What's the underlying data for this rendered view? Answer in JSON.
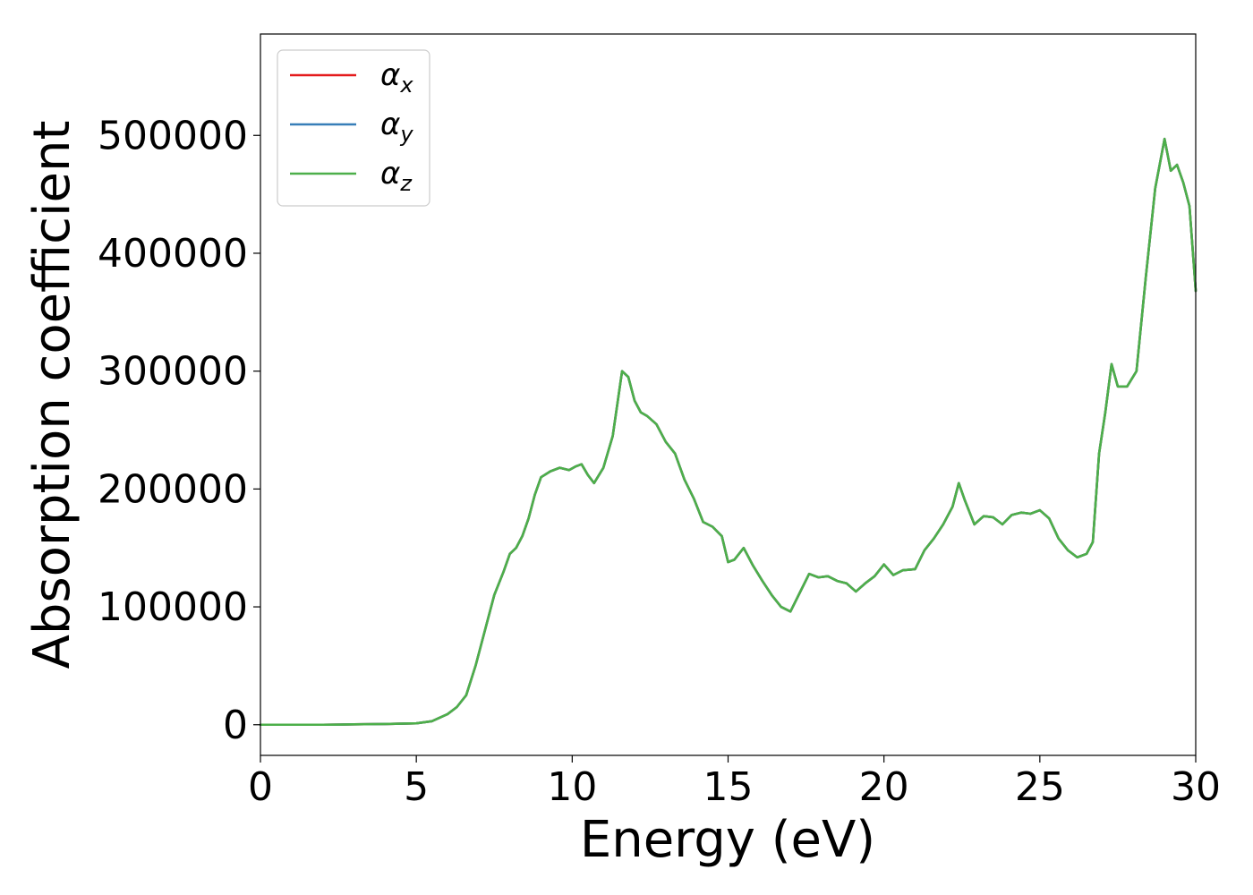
{
  "chart_data": {
    "type": "line",
    "xlabel": "Energy (eV)",
    "ylabel": "Absorption coefficient",
    "xlim": [
      0,
      30
    ],
    "ylim": [
      -26000,
      586000
    ],
    "x_ticks": [
      0,
      5,
      10,
      15,
      20,
      25,
      30
    ],
    "y_ticks": [
      0,
      100000,
      200000,
      300000,
      400000,
      500000
    ],
    "grid": false,
    "legend_position": "top-left",
    "x": [
      0,
      1,
      2,
      3,
      4,
      5,
      5.5,
      6,
      6.3,
      6.6,
      6.9,
      7.2,
      7.5,
      7.8,
      8.0,
      8.2,
      8.4,
      8.6,
      8.8,
      9.0,
      9.3,
      9.6,
      9.9,
      10.1,
      10.3,
      10.5,
      10.7,
      11.0,
      11.3,
      11.6,
      11.8,
      12.0,
      12.2,
      12.4,
      12.7,
      13.0,
      13.3,
      13.6,
      13.9,
      14.2,
      14.5,
      14.8,
      15.0,
      15.2,
      15.5,
      15.8,
      16.1,
      16.4,
      16.7,
      17.0,
      17.3,
      17.6,
      17.9,
      18.2,
      18.5,
      18.8,
      19.1,
      19.4,
      19.7,
      20.0,
      20.3,
      20.6,
      21.0,
      21.3,
      21.6,
      21.9,
      22.2,
      22.4,
      22.6,
      22.9,
      23.2,
      23.5,
      23.8,
      24.1,
      24.4,
      24.7,
      25.0,
      25.3,
      25.6,
      25.9,
      26.2,
      26.5,
      26.7,
      26.9,
      27.1,
      27.3,
      27.5,
      27.8,
      28.1,
      28.4,
      28.7,
      29.0,
      29.2,
      29.4,
      29.6,
      29.8,
      30.0
    ],
    "series": [
      {
        "name": "α_x",
        "color": "#e41a1c",
        "y": [
          0,
          0,
          0,
          300,
          600,
          1200,
          3000,
          9000,
          15000,
          25000,
          50000,
          80000,
          110000,
          130000,
          145000,
          150000,
          160000,
          175000,
          195000,
          210000,
          215000,
          218000,
          216000,
          219000,
          221000,
          212000,
          205000,
          218000,
          245000,
          300000,
          295000,
          275000,
          265000,
          262000,
          255000,
          240000,
          230000,
          208000,
          192000,
          172000,
          168000,
          160000,
          138000,
          140000,
          150000,
          135000,
          122000,
          110000,
          100000,
          96000,
          112000,
          128000,
          125000,
          126000,
          122000,
          120000,
          113000,
          120000,
          126000,
          136000,
          127000,
          131000,
          132000,
          148000,
          158000,
          170000,
          185000,
          205000,
          190000,
          170000,
          177000,
          176000,
          170000,
          178000,
          180000,
          179000,
          182000,
          175000,
          158000,
          148000,
          142000,
          145000,
          155000,
          230000,
          265000,
          306000,
          287000,
          287000,
          300000,
          380000,
          455000,
          497000,
          470000,
          475000,
          460000,
          440000,
          368000
        ]
      },
      {
        "name": "α_y",
        "color": "#377eb8",
        "y": [
          0,
          0,
          0,
          300,
          600,
          1200,
          3000,
          9000,
          15000,
          25000,
          50000,
          80000,
          110000,
          130000,
          145000,
          150000,
          160000,
          175000,
          195000,
          210000,
          215000,
          218000,
          216000,
          219000,
          221000,
          212000,
          205000,
          218000,
          245000,
          300000,
          295000,
          275000,
          265000,
          262000,
          255000,
          240000,
          230000,
          208000,
          192000,
          172000,
          168000,
          160000,
          138000,
          140000,
          150000,
          135000,
          122000,
          110000,
          100000,
          96000,
          112000,
          128000,
          125000,
          126000,
          122000,
          120000,
          113000,
          120000,
          126000,
          136000,
          127000,
          131000,
          132000,
          148000,
          158000,
          170000,
          185000,
          205000,
          190000,
          170000,
          177000,
          176000,
          170000,
          178000,
          180000,
          179000,
          182000,
          175000,
          158000,
          148000,
          142000,
          145000,
          155000,
          230000,
          265000,
          306000,
          287000,
          287000,
          300000,
          380000,
          455000,
          497000,
          470000,
          475000,
          460000,
          440000,
          368000
        ]
      },
      {
        "name": "α_z",
        "color": "#4daf4a",
        "y": [
          0,
          0,
          0,
          300,
          600,
          1200,
          3000,
          9000,
          15000,
          25000,
          50000,
          80000,
          110000,
          130000,
          145000,
          150000,
          160000,
          175000,
          195000,
          210000,
          215000,
          218000,
          216000,
          219000,
          221000,
          212000,
          205000,
          218000,
          245000,
          300000,
          295000,
          275000,
          265000,
          262000,
          255000,
          240000,
          230000,
          208000,
          192000,
          172000,
          168000,
          160000,
          138000,
          140000,
          150000,
          135000,
          122000,
          110000,
          100000,
          96000,
          112000,
          128000,
          125000,
          126000,
          122000,
          120000,
          113000,
          120000,
          126000,
          136000,
          127000,
          131000,
          132000,
          148000,
          158000,
          170000,
          185000,
          205000,
          190000,
          170000,
          177000,
          176000,
          170000,
          178000,
          180000,
          179000,
          182000,
          175000,
          158000,
          148000,
          142000,
          145000,
          155000,
          230000,
          265000,
          306000,
          287000,
          287000,
          300000,
          380000,
          455000,
          497000,
          470000,
          475000,
          460000,
          440000,
          368000
        ]
      }
    ],
    "legend": [
      {
        "symbol": "α",
        "subscript": "x",
        "color": "#e41a1c"
      },
      {
        "symbol": "α",
        "subscript": "y",
        "color": "#377eb8"
      },
      {
        "symbol": "α",
        "subscript": "z",
        "color": "#4daf4a"
      }
    ]
  }
}
